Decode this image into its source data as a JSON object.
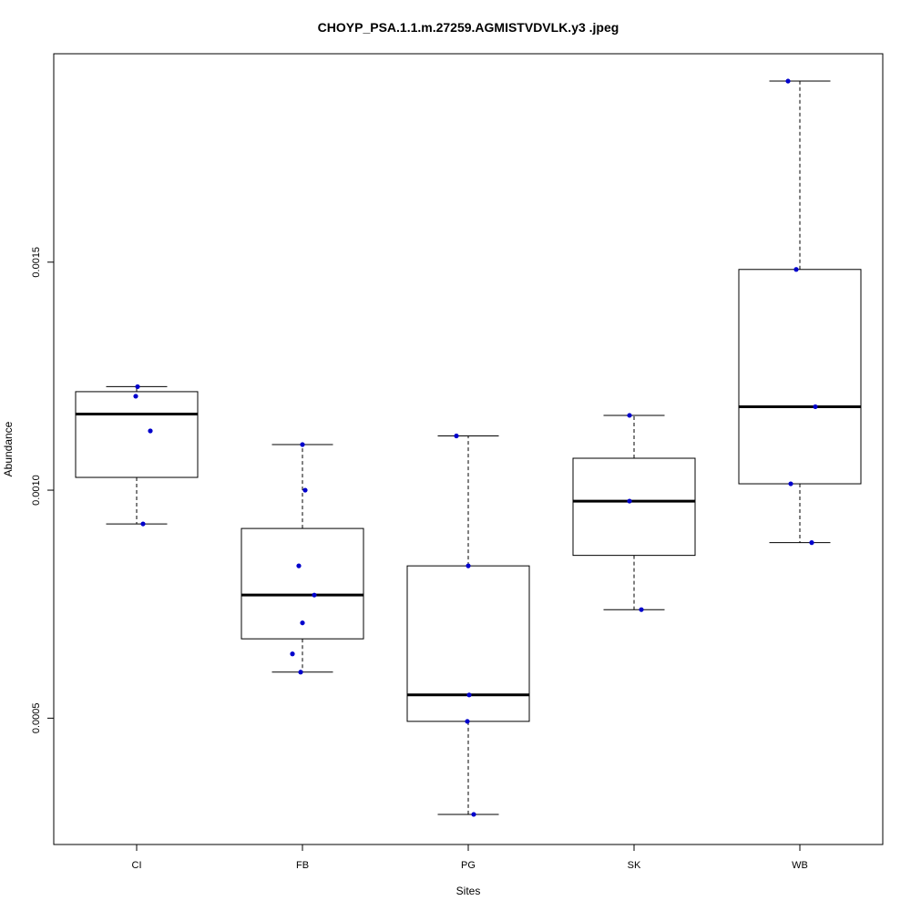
{
  "chart_data": {
    "type": "boxplot",
    "title": "CHOYP_PSA.1.1.m.27259.AGMISTVDVLK.y3 .jpeg",
    "xlabel": "Sites",
    "ylabel": "Abundance",
    "ylim": [
      0.000223,
      0.001957
    ],
    "yticks": [
      0.0005,
      0.001,
      0.0015
    ],
    "ytick_labels": [
      "0.0005",
      "0.0010",
      "0.0015"
    ],
    "grid": false,
    "point_color": "#0000cc",
    "categories": [
      "CI",
      "FB",
      "PG",
      "SK",
      "WB"
    ],
    "boxes": [
      {
        "category": "CI",
        "whisker_low": 0.000926,
        "q1": 0.001028,
        "median": 0.001167,
        "q3": 0.001216,
        "whisker_high": 0.001227
      },
      {
        "category": "FB",
        "whisker_low": 0.000601,
        "q1": 0.000674,
        "median": 0.00077,
        "q3": 0.000916,
        "whisker_high": 0.0011
      },
      {
        "category": "PG",
        "whisker_low": 0.000289,
        "q1": 0.000493,
        "median": 0.000551,
        "q3": 0.000834,
        "whisker_high": 0.001119
      },
      {
        "category": "SK",
        "whisker_low": 0.000738,
        "q1": 0.000857,
        "median": 0.000976,
        "q3": 0.00107,
        "whisker_high": 0.001164
      },
      {
        "category": "WB",
        "whisker_low": 0.000885,
        "q1": 0.001014,
        "median": 0.001183,
        "q3": 0.001484,
        "whisker_high": 0.001897
      }
    ],
    "points": [
      {
        "category": "CI",
        "values": [
          0.001227,
          0.001206,
          0.00113,
          0.000926
        ]
      },
      {
        "category": "FB",
        "values": [
          0.0011,
          0.001,
          0.000834,
          0.00077,
          0.000709,
          0.000641,
          0.000601
        ]
      },
      {
        "category": "PG",
        "values": [
          0.001119,
          0.000834,
          0.000551,
          0.000493,
          0.000289
        ]
      },
      {
        "category": "SK",
        "values": [
          0.001164,
          0.000976,
          0.000738
        ]
      },
      {
        "category": "WB",
        "values": [
          0.001897,
          0.001484,
          0.001183,
          0.001014,
          0.000885
        ]
      }
    ]
  }
}
